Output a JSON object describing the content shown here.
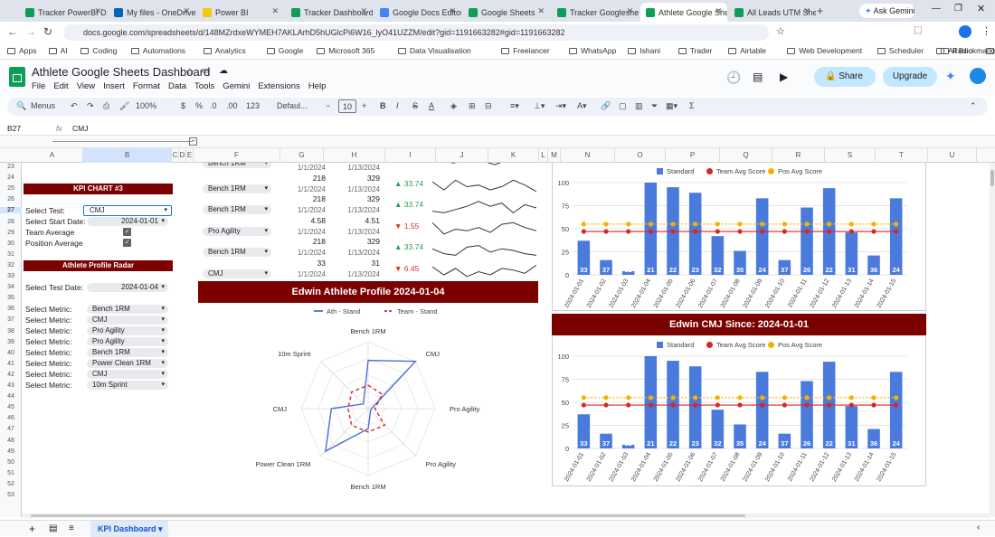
{
  "browser": {
    "tabs": [
      {
        "label": "Tracker PowerBI Da",
        "color": "#0f9d58"
      },
      {
        "label": "My files - OneDrive",
        "color": "#0364b8"
      },
      {
        "label": "Power BI",
        "color": "#f2c811"
      },
      {
        "label": "Tracker Dashboard",
        "color": "#0f9d58"
      },
      {
        "label": "Google Docs Editor",
        "color": "#4285f4"
      },
      {
        "label": "Google Sheets",
        "color": "#0f9d58"
      },
      {
        "label": "Tracker Googleshe",
        "color": "#0f9d58"
      },
      {
        "label": "Athlete Google She",
        "color": "#0f9d58",
        "active": true
      },
      {
        "label": "All Leads UTM She",
        "color": "#0f9d58"
      }
    ],
    "ask_gemini": "Ask Gemini",
    "url": "docs.google.com/spreadsheets/d/148MZrdxeWYMEH7AKLArhD5hUGlcPi6W16_lyO41UZZM/edit?gid=1191663282#gid=1191663282",
    "bookmarks": [
      "Apps",
      "AI",
      "Coding",
      "Automations",
      "Analytics",
      "Google",
      "Microsoft 365",
      "Data Visualisation",
      "Freelancer",
      "WhatsApp",
      "Ishani",
      "Trader",
      "Airtable",
      "Web Development",
      "Scheduler",
      "Radio",
      "Designer"
    ],
    "all_bookmarks": "All Bookmarks"
  },
  "doc": {
    "title": "Athlete Google Sheets Dashboard",
    "menus": [
      "File",
      "Edit",
      "View",
      "Insert",
      "Format",
      "Data",
      "Tools",
      "Gemini",
      "Extensions",
      "Help"
    ],
    "share": "Share",
    "upgrade": "Upgrade"
  },
  "toolbar": {
    "menus": "Menus",
    "zoom": "100%",
    "currency": "$",
    "percent": "%",
    "dec1": ".0",
    "dec2": ".00",
    "fmt": "123",
    "font": "Defaul...",
    "size": "10",
    "bold": "B",
    "italic": "I",
    "strike": "S",
    "text_color": "A"
  },
  "formula": {
    "cell": "B27",
    "value": "CMJ"
  },
  "columns": [
    "A",
    "B",
    "C",
    "D",
    "E",
    "F",
    "G",
    "H",
    "I",
    "J",
    "K",
    "L",
    "M",
    "N",
    "O",
    "P",
    "Q",
    "R",
    "S",
    "T",
    "U"
  ],
  "rows": [
    "23",
    "24",
    "25",
    "26",
    "27",
    "28",
    "29",
    "30",
    "31",
    "32",
    "33",
    "34",
    "35",
    "36",
    "37",
    "38",
    "39",
    "40",
    "41",
    "42",
    "43",
    "44",
    "45",
    "46",
    "47",
    "48",
    "49",
    "50",
    "51",
    "52",
    "53"
  ],
  "left": {
    "kpi3_title": "KPI CHART #3",
    "select_test_label": "Select Test:",
    "select_test_value": "CMJ",
    "start_date_label": "Select Start Date:",
    "start_date_value": "2024-01-01",
    "team_avg_label": "Team Average",
    "pos_avg_label": "Position Average",
    "radar_title": "Athlete Profile Radar",
    "test_date_label": "Select Test Date:",
    "test_date_value": "2024-01-04",
    "metric_label": "Select Metric:",
    "metrics": [
      "Bench 1RM",
      "CMJ",
      "Pro Agility",
      "Pro Agility",
      "Bench 1RM",
      "Power Clean 1RM",
      "CMJ",
      "10m Sprint"
    ]
  },
  "kpi_rows": [
    {
      "metric": "Bench 1RM",
      "v1": "",
      "v2": "",
      "d1": "1/1/2024",
      "d2": "1/13/2024",
      "change": "",
      "dir": ""
    },
    {
      "metric": "Bench 1RM",
      "v1": "218",
      "v2": "329",
      "d1": "1/1/2024",
      "d2": "1/13/2024",
      "change": "33.74",
      "dir": "up"
    },
    {
      "metric": "Bench 1RM",
      "v1": "218",
      "v2": "329",
      "d1": "1/1/2024",
      "d2": "1/13/2024",
      "change": "33.74",
      "dir": "up"
    },
    {
      "metric": "Pro Agility",
      "v1": "4.58",
      "v2": "4.51",
      "d1": "1/1/2024",
      "d2": "1/13/2024",
      "change": "1.55",
      "dir": "down"
    },
    {
      "metric": "Bench 1RM",
      "v1": "218",
      "v2": "329",
      "d1": "1/1/2024",
      "d2": "1/13/2024",
      "change": "33.74",
      "dir": "up"
    },
    {
      "metric": "CMJ",
      "v1": "33",
      "v2": "31",
      "d1": "1/1/2024",
      "d2": "1/13/2024",
      "change": "6.45",
      "dir": "down"
    }
  ],
  "radar_panel": {
    "title": "Edwin Athlete Profile 2024-01-04"
  },
  "cmj_panel": {
    "title": "Edwin CMJ Since: 2024-01-01"
  },
  "sheet_tab": "KPI Dashboard",
  "chart_data": [
    {
      "type": "bar",
      "categories": [
        "2024-01-01",
        "2024-01-02",
        "2024-01-03",
        "2024-01-04",
        "2024-01-05",
        "2024-01-06",
        "2024-01-07",
        "2024-01-08",
        "2024-01-09",
        "2024-01-10",
        "2024-01-11",
        "2024-01-12",
        "2024-01-13",
        "2024-01-14",
        "2024-01-15"
      ],
      "series": [
        {
          "name": "Standard",
          "kind": "bar",
          "color": "#4a7bdc",
          "values": [
            37,
            16,
            4,
            100,
            95,
            89,
            42,
            26,
            83,
            16,
            73,
            94,
            46,
            21,
            83
          ],
          "labels": [
            "33",
            "37",
            "32",
            "21",
            "22",
            "23",
            "32",
            "35",
            "24",
            "37",
            "26",
            "22",
            "31",
            "36",
            "24"
          ]
        },
        {
          "name": "Team Avg Score",
          "kind": "line",
          "color": "#d62728",
          "values": [
            47,
            47,
            47,
            47,
            47,
            47,
            47,
            47,
            47,
            47,
            47,
            47,
            47,
            47,
            47
          ]
        },
        {
          "name": "Pos Avg Score",
          "kind": "line",
          "color": "#f0b400",
          "values": [
            55,
            55,
            55,
            55,
            55,
            55,
            55,
            55,
            55,
            55,
            55,
            55,
            55,
            55,
            55
          ]
        }
      ],
      "yticks": [
        0,
        25,
        50,
        75,
        100
      ],
      "ylim": [
        0,
        100
      ]
    },
    {
      "type": "bar",
      "categories": [
        "2024-01-01",
        "2024-01-02",
        "2024-01-03",
        "2024-01-04",
        "2024-01-05",
        "2024-01-06",
        "2024-01-07",
        "2024-01-08",
        "2024-01-09",
        "2024-01-10",
        "2024-01-11",
        "2024-01-12",
        "2024-01-13",
        "2024-01-14",
        "2024-01-15"
      ],
      "series": [
        {
          "name": "Standard",
          "kind": "bar",
          "color": "#4a7bdc",
          "values": [
            37,
            16,
            4,
            100,
            95,
            89,
            42,
            26,
            83,
            16,
            73,
            94,
            46,
            21,
            83
          ],
          "labels": [
            "33",
            "37",
            "32",
            "21",
            "22",
            "23",
            "32",
            "35",
            "24",
            "37",
            "26",
            "22",
            "31",
            "36",
            "24"
          ]
        },
        {
          "name": "Team Avg Score",
          "kind": "line",
          "color": "#d62728",
          "values": [
            47,
            47,
            47,
            47,
            47,
            47,
            47,
            47,
            47,
            47,
            47,
            47,
            47,
            47,
            47
          ]
        },
        {
          "name": "Pos Avg Score",
          "kind": "line",
          "color": "#f0b400",
          "values": [
            55,
            55,
            55,
            55,
            55,
            55,
            55,
            55,
            55,
            55,
            55,
            55,
            55,
            55,
            55
          ]
        }
      ],
      "yticks": [
        0,
        25,
        50,
        75,
        100
      ],
      "ylim": [
        0,
        100
      ]
    },
    {
      "type": "radar",
      "axes": [
        "Bench 1RM",
        "CMJ",
        "Pro Agility",
        "Pro Agility",
        "Bench 1RM",
        "Power Clean 1RM",
        "CMJ",
        "10m Sprint"
      ],
      "series": [
        {
          "name": "Ath - Stand",
          "color": "#4a6fd6",
          "dash": false,
          "values": [
            0.72,
            1.0,
            0.05,
            0.05,
            0.3,
            0.9,
            0.55,
            0.1
          ]
        },
        {
          "name": "Team - Stand",
          "color": "#d62728",
          "dash": true,
          "values": [
            0.35,
            0.3,
            0.1,
            0.35,
            0.35,
            0.35,
            0.3,
            0.35
          ]
        }
      ],
      "rmax": 1
    },
    {
      "type": "sparkline",
      "rows": [
        [
          0.6,
          0.2,
          0.5,
          0.1,
          0.6,
          0.3
        ],
        [
          0.8,
          0.3,
          0.9,
          0.5,
          0.6,
          0.3,
          0.5,
          0.9,
          0.6,
          0.2
        ],
        [
          0.3,
          0.2,
          0.4,
          0.6,
          0.9,
          0.6,
          0.8,
          0.2,
          0.7,
          0.5
        ],
        [
          0.9,
          0.2,
          0.5,
          0.4,
          0.6,
          0.3,
          0.8,
          0.9,
          0.6,
          0.4
        ],
        [
          0.6,
          0.3,
          0.2,
          0.7,
          0.8,
          0.4,
          0.6,
          0.5,
          0.3,
          0.2
        ],
        [
          0.8,
          0.3,
          0.7,
          0.2,
          0.5,
          0.3,
          0.7,
          0.6,
          0.4,
          0.9
        ]
      ]
    }
  ]
}
